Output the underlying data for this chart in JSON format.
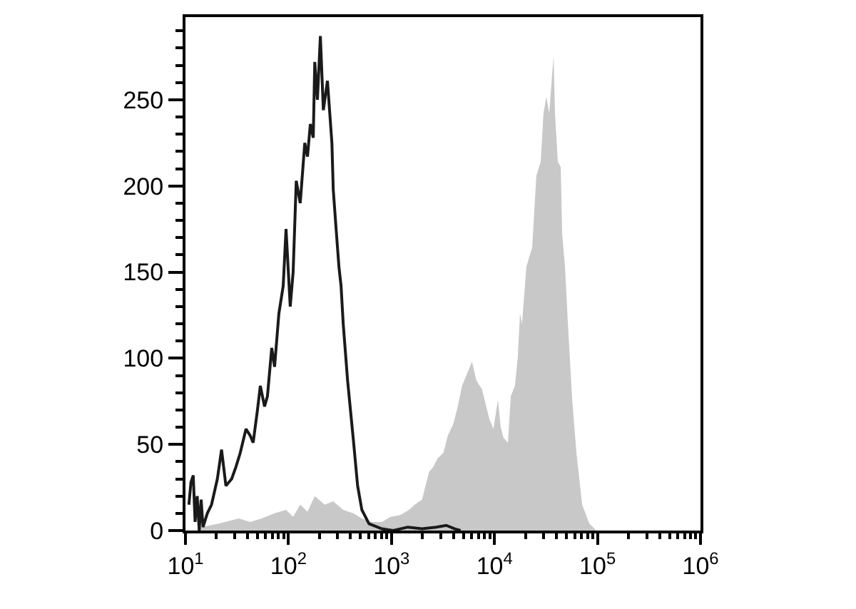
{
  "chart_data": {
    "type": "area",
    "log": "x",
    "grid": false,
    "xlim": [
      10,
      1000000
    ],
    "ylim": [
      0,
      298
    ],
    "xticks": [
      {
        "value": 10,
        "label": "10$^{1}$"
      },
      {
        "value": 100,
        "label": "10$^{2}$"
      },
      {
        "value": 1000,
        "label": "10$^{3}$"
      },
      {
        "value": 10000,
        "label": "10$^{4}$"
      },
      {
        "value": 100000,
        "label": "10$^{5}$"
      },
      {
        "value": 1000000,
        "label": "10$^{6}$"
      },
      {
        "value": 20,
        "label": null
      },
      {
        "value": 30,
        "label": null
      },
      {
        "value": 40,
        "label": null
      },
      {
        "value": 50,
        "label": null
      },
      {
        "value": 60,
        "label": null
      },
      {
        "value": 70,
        "label": null
      },
      {
        "value": 80,
        "label": null
      },
      {
        "value": 90,
        "label": null
      },
      {
        "value": 200,
        "label": null
      },
      {
        "value": 300,
        "label": null
      },
      {
        "value": 400,
        "label": null
      },
      {
        "value": 500,
        "label": null
      },
      {
        "value": 600,
        "label": null
      },
      {
        "value": 700,
        "label": null
      },
      {
        "value": 800,
        "label": null
      },
      {
        "value": 900,
        "label": null
      },
      {
        "value": 2000,
        "label": null
      },
      {
        "value": 3000,
        "label": null
      },
      {
        "value": 4000,
        "label": null
      },
      {
        "value": 5000,
        "label": null
      },
      {
        "value": 6000,
        "label": null
      },
      {
        "value": 7000,
        "label": null
      },
      {
        "value": 8000,
        "label": null
      },
      {
        "value": 9000,
        "label": null
      },
      {
        "value": 20000,
        "label": null
      },
      {
        "value": 30000,
        "label": null
      },
      {
        "value": 40000,
        "label": null
      },
      {
        "value": 50000,
        "label": null
      },
      {
        "value": 60000,
        "label": null
      },
      {
        "value": 70000,
        "label": null
      },
      {
        "value": 80000,
        "label": null
      },
      {
        "value": 90000,
        "label": null
      },
      {
        "value": 200000,
        "label": null
      },
      {
        "value": 300000,
        "label": null
      },
      {
        "value": 400000,
        "label": null
      },
      {
        "value": 500000,
        "label": null
      },
      {
        "value": 600000,
        "label": null
      },
      {
        "value": 700000,
        "label": null
      },
      {
        "value": 800000,
        "label": null
      },
      {
        "value": 900000,
        "label": null
      }
    ],
    "yticks": [
      0,
      50,
      100,
      150,
      200,
      250,
      {
        "value": 10,
        "label": null
      },
      {
        "value": 20,
        "label": null
      },
      {
        "value": 30,
        "label": null
      },
      {
        "value": 40,
        "label": null
      },
      {
        "value": 60,
        "label": null
      },
      {
        "value": 70,
        "label": null
      },
      {
        "value": 80,
        "label": null
      },
      {
        "value": 90,
        "label": null
      },
      {
        "value": 110,
        "label": null
      },
      {
        "value": 120,
        "label": null
      },
      {
        "value": 130,
        "label": null
      },
      {
        "value": 140,
        "label": null
      },
      {
        "value": 160,
        "label": null
      },
      {
        "value": 170,
        "label": null
      },
      {
        "value": 180,
        "label": null
      },
      {
        "value": 190,
        "label": null
      },
      {
        "value": 210,
        "label": null
      },
      {
        "value": 220,
        "label": null
      },
      {
        "value": 230,
        "label": null
      },
      {
        "value": 240,
        "label": null
      },
      {
        "value": 260,
        "label": null
      },
      {
        "value": 270,
        "label": null
      },
      {
        "value": 280,
        "label": null
      },
      {
        "value": 290,
        "label": null
      }
    ],
    "series": [
      {
        "color": "#c8c8c8",
        "x": [
          13.9,
          21.1,
          33.0,
          42.6,
          55.0,
          73.3,
          94.7,
          111,
          130,
          153,
          180,
          225,
          272,
          340,
          426,
          516,
          645,
          807,
          978,
          1220,
          1480,
          1680,
          1980,
          2320,
          2550,
          2810,
          3190,
          3520,
          3990,
          4400,
          4840,
          5330,
          6050,
          6670,
          7570,
          8890,
          9770,
          10800,
          11500,
          12200,
          13500,
          14400,
          15800,
          16800,
          17700,
          18500,
          20400,
          21800,
          23200,
          25500,
          28100,
          29900,
          31900,
          34000,
          36300,
          37500,
          38700,
          41200,
          44000,
          45400,
          48400,
          51300,
          56800,
          62500,
          71000,
          83300,
          97700
        ],
        "values": [
          2,
          4,
          7,
          5,
          7,
          10,
          12,
          8,
          15,
          11,
          20,
          15,
          17,
          12,
          10,
          7,
          5,
          5,
          8,
          9,
          12,
          15,
          18,
          34,
          37,
          42,
          45,
          55,
          62,
          72,
          84,
          90,
          98,
          87,
          82,
          65,
          59,
          76,
          60,
          54,
          51,
          78,
          84,
          100,
          126,
          120,
          153,
          159,
          164,
          206,
          214,
          242,
          252,
          242,
          265,
          275,
          242,
          214,
          211,
          172,
          153,
          123,
          76,
          45,
          15,
          4,
          0
        ]
      },
      {
        "type": "line",
        "color": "#1a1a1a",
        "x": [
          10.8,
          11.3,
          11.9,
          12.4,
          13.0,
          13.6,
          14.2,
          14.8,
          16.3,
          17.9,
          20.4,
          22.4,
          24.7,
          28.1,
          30.9,
          34.0,
          38.7,
          42.6,
          45.4,
          50.0,
          53.3,
          58.6,
          62.5,
          68.8,
          73.3,
          80.7,
          88.9,
          94.7,
          104,
          111,
          119,
          130,
          144,
          153,
          163,
          174,
          180,
          191,
          204,
          218,
          239,
          264,
          272,
          290,
          309,
          324,
          340,
          375,
          426,
          469,
          516,
          605,
          807,
          1040,
          1440,
          1980,
          2720,
          3400,
          4120,
          4680
        ],
        "values": [
          15,
          28,
          32,
          5,
          20,
          0,
          18,
          2,
          10,
          15,
          30,
          47,
          26,
          30,
          37,
          45,
          59,
          55,
          51,
          70,
          84,
          72,
          78,
          106,
          95,
          126,
          142,
          175,
          130,
          150,
          203,
          190,
          225,
          217,
          236,
          228,
          272,
          250,
          287,
          244,
          261,
          225,
          198,
          175,
          153,
          142,
          120,
          87,
          53,
          26,
          12,
          4,
          1,
          0,
          2,
          1,
          2,
          3,
          1,
          0
        ]
      }
    ]
  }
}
